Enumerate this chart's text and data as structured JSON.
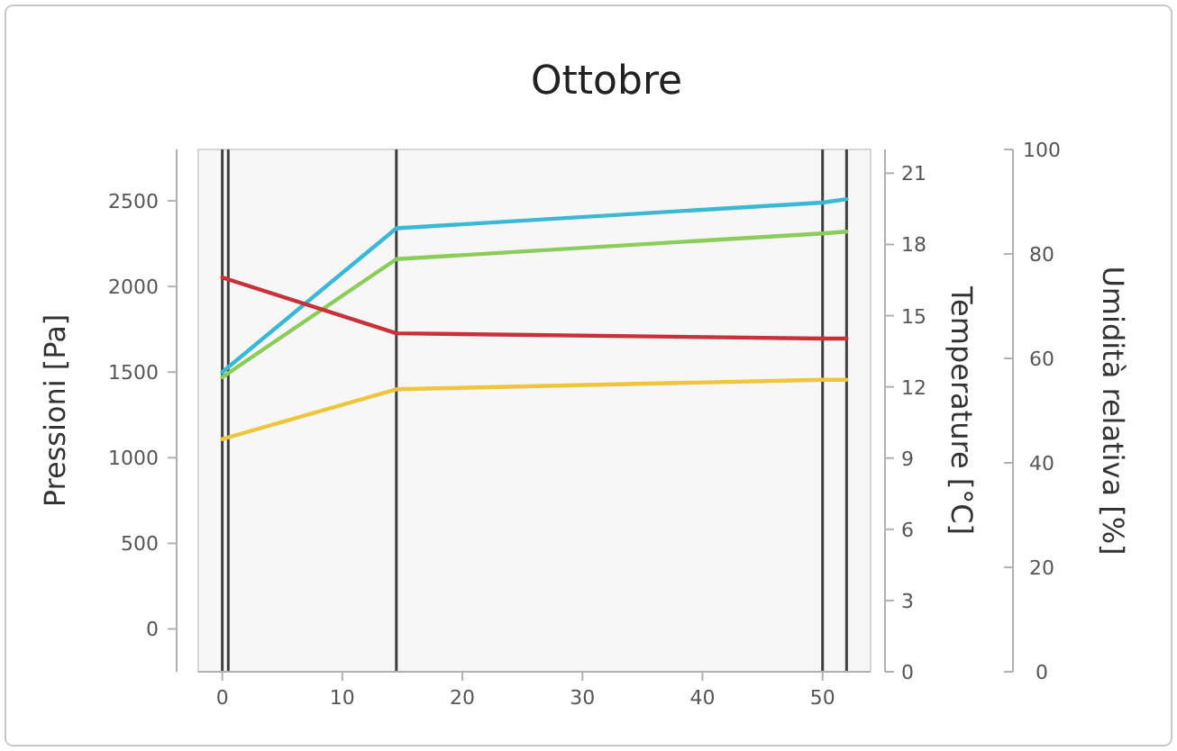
{
  "chart_data": {
    "type": "line",
    "title": "Ottobre",
    "ylabel": "Pressioni [Pa]",
    "y2label": "Temperature [°C]",
    "y3label": "Umidità relativa [%]",
    "xlim": [
      -2,
      54
    ],
    "xticks": [
      0,
      10,
      20,
      30,
      40,
      50
    ],
    "ylim": [
      -250,
      2800
    ],
    "yticks": [
      0,
      500,
      1000,
      1500,
      2000,
      2500
    ],
    "y2lim": [
      0,
      22
    ],
    "y2ticks": [
      0,
      3,
      6,
      9,
      12,
      15,
      18,
      21
    ],
    "y3lim": [
      0,
      100
    ],
    "y3ticks": [
      0,
      20,
      40,
      60,
      80,
      100
    ],
    "grid": false,
    "marker": "none",
    "line_style": "solid",
    "x": [
      0,
      14.5,
      50,
      52
    ],
    "series": [
      {
        "color": "#3bb8d4",
        "values": [
          1500,
          2340,
          2490,
          2510
        ]
      },
      {
        "color": "#8ccc5a",
        "values": [
          1470,
          2160,
          2310,
          2320
        ]
      },
      {
        "color": "#c8313a",
        "values": [
          75.5,
          64.8,
          63.8,
          63.8
        ],
        "axis": "y3"
      },
      {
        "color": "#eec53c",
        "values": [
          9.8,
          11.9,
          12.3,
          12.3
        ],
        "axis": "y2"
      }
    ],
    "ref_lines": [
      {
        "axis": "x",
        "value": 0,
        "color": "#404040"
      },
      {
        "axis": "x",
        "value": 0.5,
        "color": "#404040"
      },
      {
        "axis": "x",
        "value": 14.5,
        "color": "#404040"
      },
      {
        "axis": "x",
        "value": 50,
        "color": "#404040"
      },
      {
        "axis": "x",
        "value": 52,
        "color": "#404040"
      }
    ]
  }
}
